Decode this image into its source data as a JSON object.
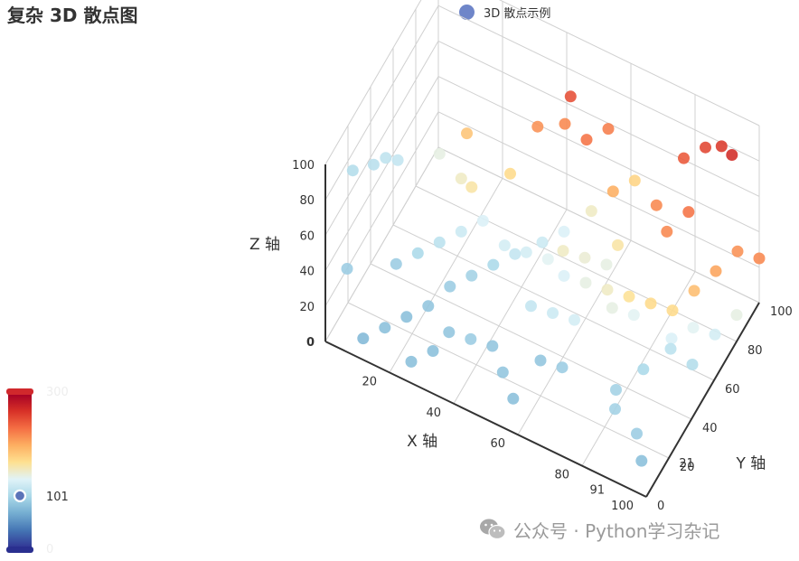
{
  "title": "复杂 3D 散点图",
  "legend": {
    "label": "3D 散点示例",
    "color": "#6f86c9"
  },
  "watermark": {
    "text": "公众号 · Python学习杂记",
    "icon": "wechat-icon"
  },
  "visual_map": {
    "max_label": "300",
    "min_label": "0",
    "handle_label": "101",
    "handle_value": 101,
    "colors": [
      "#313695",
      "#4575b4",
      "#74add1",
      "#abd9e9",
      "#e0f3f8",
      "#fee090",
      "#fdae61",
      "#f46d43",
      "#d73027",
      "#a50026"
    ]
  },
  "chart_data": {
    "type": "scatter",
    "title": "复杂 3D 散点图",
    "series": [
      {
        "name": "3D 散点示例"
      }
    ],
    "xlabel": "X 轴",
    "ylabel": "Y 轴",
    "zlabel": "Z 轴",
    "xlim": [
      0,
      100
    ],
    "ylim": [
      0,
      100
    ],
    "zlim": [
      0,
      100
    ],
    "x_ticks": [
      "20",
      "40",
      "60",
      "80",
      "100"
    ],
    "x_extra_tick": "91",
    "y_ticks": [
      "0",
      "20",
      "40",
      "60",
      "80",
      "100"
    ],
    "y_extra_tick": "21",
    "z_ticks": [
      "0",
      "20",
      "40",
      "60",
      "80",
      "100"
    ],
    "color_range": [
      0,
      300
    ],
    "points": [
      [
        5,
        10,
        90,
        105
      ],
      [
        8,
        20,
        85,
        108
      ],
      [
        10,
        25,
        85,
        112
      ],
      [
        12,
        30,
        80,
        115
      ],
      [
        5,
        5,
        40,
        90
      ],
      [
        25,
        30,
        95,
        140
      ],
      [
        30,
        40,
        100,
        185
      ],
      [
        35,
        30,
        85,
        160
      ],
      [
        30,
        35,
        80,
        150
      ],
      [
        40,
        50,
        75,
        170
      ],
      [
        45,
        60,
        95,
        215
      ],
      [
        50,
        70,
        90,
        220
      ],
      [
        55,
        75,
        80,
        230
      ],
      [
        50,
        75,
        100,
        250
      ],
      [
        60,
        80,
        85,
        225
      ],
      [
        70,
        75,
        70,
        175
      ],
      [
        65,
        70,
        65,
        200
      ],
      [
        75,
        80,
        55,
        220
      ],
      [
        80,
        90,
        75,
        245
      ],
      [
        85,
        95,
        80,
        255
      ],
      [
        90,
        95,
        85,
        262
      ],
      [
        95,
        90,
        90,
        270
      ],
      [
        85,
        80,
        60,
        230
      ],
      [
        80,
        75,
        50,
        220
      ],
      [
        70,
        60,
        50,
        160
      ],
      [
        60,
        65,
        55,
        150
      ],
      [
        55,
        55,
        50,
        130
      ],
      [
        50,
        50,
        45,
        120
      ],
      [
        45,
        40,
        45,
        115
      ],
      [
        40,
        35,
        40,
        100
      ],
      [
        35,
        30,
        35,
        95
      ],
      [
        30,
        25,
        30,
        90
      ],
      [
        25,
        20,
        20,
        85
      ],
      [
        20,
        15,
        15,
        80
      ],
      [
        15,
        10,
        10,
        80
      ],
      [
        10,
        5,
        5,
        75
      ],
      [
        15,
        20,
        35,
        90
      ],
      [
        20,
        25,
        40,
        100
      ],
      [
        25,
        30,
        45,
        110
      ],
      [
        30,
        35,
        50,
        120
      ],
      [
        35,
        40,
        55,
        130
      ],
      [
        40,
        45,
        40,
        125
      ],
      [
        45,
        50,
        35,
        125
      ],
      [
        50,
        55,
        30,
        135
      ],
      [
        55,
        55,
        25,
        130
      ],
      [
        60,
        60,
        20,
        140
      ],
      [
        65,
        65,
        15,
        150
      ],
      [
        70,
        70,
        10,
        165
      ],
      [
        75,
        75,
        5,
        170
      ],
      [
        80,
        80,
        0,
        170
      ],
      [
        85,
        85,
        10,
        190
      ],
      [
        90,
        90,
        20,
        205
      ],
      [
        95,
        95,
        30,
        215
      ],
      [
        100,
        100,
        25,
        220
      ],
      [
        60,
        40,
        60,
        150
      ],
      [
        65,
        45,
        55,
        145
      ],
      [
        70,
        50,
        50,
        140
      ],
      [
        50,
        40,
        20,
        115
      ],
      [
        55,
        45,
        15,
        120
      ],
      [
        60,
        50,
        10,
        125
      ],
      [
        70,
        55,
        20,
        140
      ],
      [
        75,
        60,
        15,
        135
      ],
      [
        85,
        65,
        5,
        130
      ],
      [
        90,
        70,
        10,
        135
      ],
      [
        95,
        75,
        5,
        125
      ],
      [
        100,
        80,
        15,
        140
      ],
      [
        90,
        50,
        20,
        110
      ],
      [
        95,
        55,
        10,
        105
      ],
      [
        85,
        40,
        15,
        100
      ],
      [
        80,
        30,
        10,
        95
      ],
      [
        90,
        20,
        5,
        90
      ],
      [
        95,
        10,
        5,
        80
      ],
      [
        85,
        15,
        20,
        95
      ],
      [
        60,
        20,
        20,
        85
      ],
      [
        65,
        25,
        15,
        90
      ],
      [
        45,
        20,
        15,
        85
      ],
      [
        40,
        15,
        20,
        90
      ],
      [
        35,
        10,
        25,
        85
      ],
      [
        30,
        10,
        10,
        80
      ],
      [
        25,
        5,
        5,
        80
      ],
      [
        50,
        15,
        10,
        85
      ],
      [
        55,
        10,
        5,
        80
      ]
    ]
  }
}
